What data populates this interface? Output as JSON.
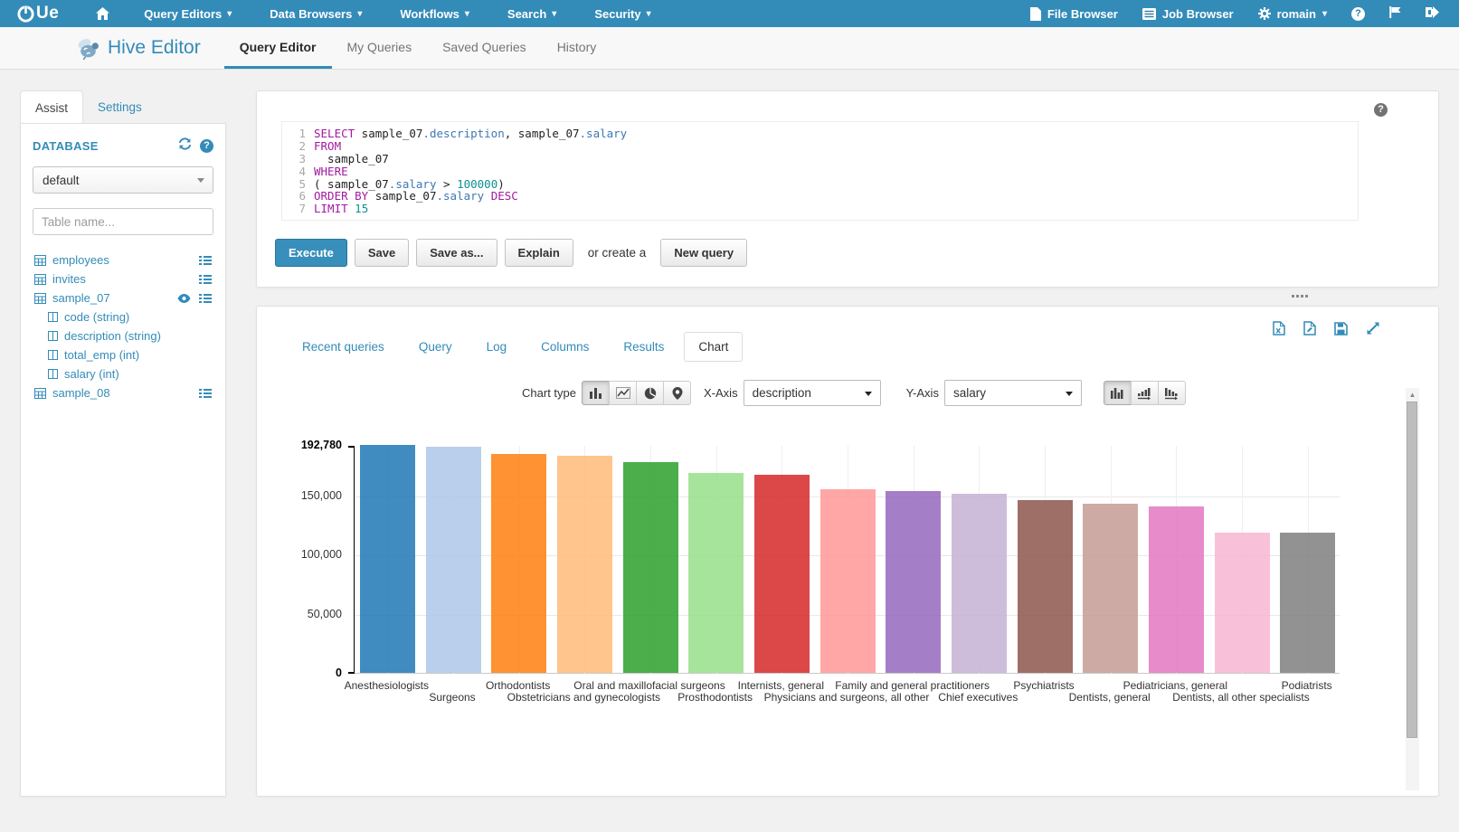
{
  "colors": {
    "accent": "#338bb8",
    "navbar": "#338bb8"
  },
  "navbar": {
    "logo_text": "Ue",
    "menus": [
      "Query Editors",
      "Data Browsers",
      "Workflows",
      "Search",
      "Security"
    ],
    "file_browser_label": "File Browser",
    "job_browser_label": "Job Browser",
    "username": "romain"
  },
  "header": {
    "title": "Hive Editor",
    "tabs": [
      "Query Editor",
      "My Queries",
      "Saved Queries",
      "History"
    ],
    "active_tab": "Query Editor"
  },
  "sidebar": {
    "tabs": [
      "Assist",
      "Settings"
    ],
    "active_tab": "Assist",
    "database_label": "DATABASE",
    "database_value": "default",
    "table_filter_placeholder": "Table name...",
    "tables": [
      {
        "name": "employees",
        "right_icons": [
          "browse"
        ],
        "columns": []
      },
      {
        "name": "invites",
        "right_icons": [
          "browse"
        ],
        "columns": []
      },
      {
        "name": "sample_07",
        "right_icons": [
          "eye",
          "browse"
        ],
        "columns": [
          "code (string)",
          "description (string)",
          "total_emp (int)",
          "salary (int)"
        ]
      },
      {
        "name": "sample_08",
        "right_icons": [
          "browse"
        ],
        "columns": []
      }
    ]
  },
  "query_editor": {
    "sql_lines": [
      [
        [
          "kw",
          "SELECT"
        ],
        [
          "t",
          " sample_07"
        ],
        [
          "attr",
          ".description"
        ],
        [
          "t",
          ", sample_07"
        ],
        [
          "attr",
          ".salary"
        ]
      ],
      [
        [
          "kw",
          "FROM"
        ]
      ],
      [
        [
          "t",
          "  sample_07"
        ]
      ],
      [
        [
          "kw",
          "WHERE"
        ]
      ],
      [
        [
          "t",
          "( sample_07"
        ],
        [
          "attr",
          ".salary"
        ],
        [
          "t",
          " > "
        ],
        [
          "num",
          "100000"
        ],
        [
          "t",
          ")"
        ]
      ],
      [
        [
          "kw",
          "ORDER BY"
        ],
        [
          "t",
          " sample_07"
        ],
        [
          "attr",
          ".salary"
        ],
        [
          "t",
          " "
        ],
        [
          "kw",
          "DESC"
        ]
      ],
      [
        [
          "kw",
          "LIMIT"
        ],
        [
          "t",
          " "
        ],
        [
          "num",
          "15"
        ]
      ]
    ],
    "execute_label": "Execute",
    "save_label": "Save",
    "save_as_label": "Save as...",
    "explain_label": "Explain",
    "or_create_text": "or create a",
    "new_query_label": "New query"
  },
  "results": {
    "tabs": [
      "Recent queries",
      "Query",
      "Log",
      "Columns",
      "Results",
      "Chart"
    ],
    "active_tab": "Chart",
    "chart_type_label": "Chart type",
    "x_axis_label": "X-Axis",
    "x_axis_value": "description",
    "y_axis_label": "Y-Axis",
    "y_axis_value": "salary"
  },
  "chart_data": {
    "type": "bar",
    "title": "",
    "xlabel": "description",
    "ylabel": "salary",
    "categories": [
      "Anesthesiologists",
      "Surgeons",
      "Orthodontists",
      "Obstetricians and gynecologists",
      "Oral and maxillofacial surgeons",
      "Prosthodontists",
      "Internists, general",
      "Physicians and surgeons, all other",
      "Family and general practitioners",
      "Chief executives",
      "Psychiatrists",
      "Dentists, general",
      "Pediatricians, general",
      "Dentists, all other specialists",
      "Podiatrists"
    ],
    "values": [
      192780,
      191410,
      185340,
      183600,
      178440,
      169360,
      167270,
      155150,
      153640,
      151370,
      146150,
      142870,
      140690,
      118820,
      118500
    ],
    "bar_colors": [
      "#1f77b4",
      "#aec7e8",
      "#ff7f0e",
      "#ffbb78",
      "#2ca02c",
      "#98df8a",
      "#d62728",
      "#ff9896",
      "#9467bd",
      "#c5b0d5",
      "#8c564b",
      "#c49c94",
      "#e377c2",
      "#f7b6d2",
      "#7f7f7f"
    ],
    "ylim": [
      0,
      192780
    ],
    "y_ticks": [
      0,
      50000,
      100000,
      150000,
      192780
    ],
    "y_tick_labels": [
      "0",
      "50,000",
      "100,000",
      "150,000",
      "192,780"
    ],
    "grid": true,
    "legend": "none"
  }
}
